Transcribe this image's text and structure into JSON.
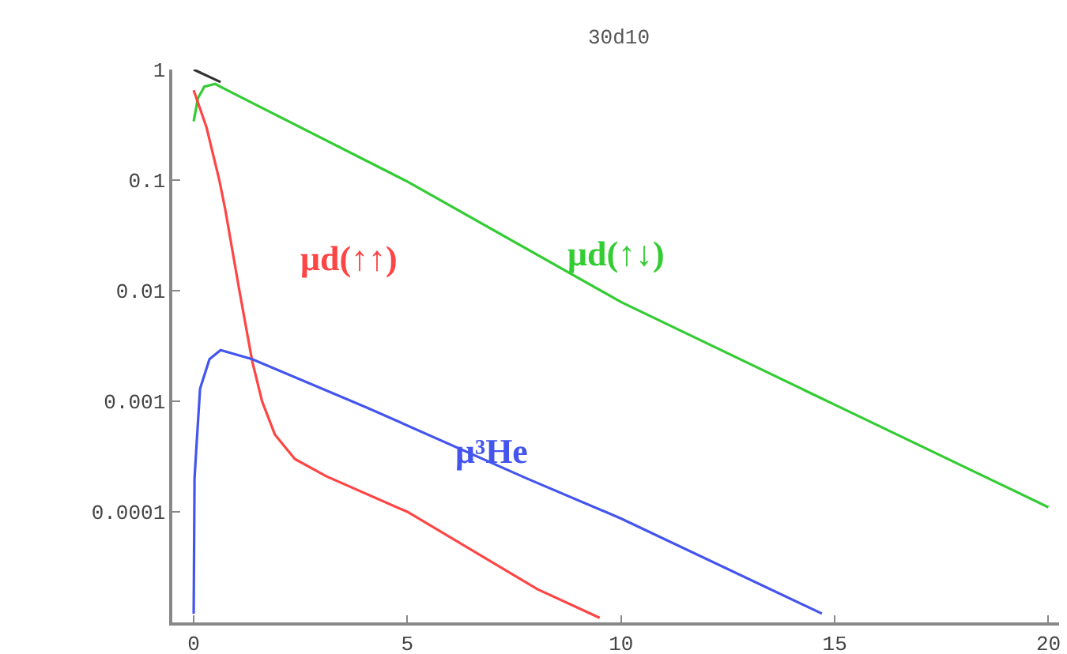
{
  "chart_data": {
    "type": "line",
    "title": "30d10",
    "log": "y",
    "legend": false,
    "marker": "none",
    "line_style": "solid",
    "xlim": [
      -0.5,
      20.25
    ],
    "ylim": [
      1e-05,
      1
    ],
    "xticks": [
      0,
      5,
      10,
      15,
      20
    ],
    "yticks": [
      1,
      0.1,
      0.01,
      0.001,
      0.0001
    ],
    "series": [
      {
        "color": "#333333",
        "x": [
          0,
          0.63
        ],
        "values": [
          1,
          0.77
        ]
      },
      {
        "name": "μd(↑↓)",
        "color": "#33cc33",
        "x": [
          0,
          0.1,
          0.25,
          0.5,
          1,
          5,
          10,
          15,
          20
        ],
        "values": [
          0.34,
          0.55,
          0.7,
          0.74,
          0.59,
          0.097,
          0.0079,
          0.00093,
          0.00011
        ]
      },
      {
        "name": "μd(↑↑)",
        "color": "#ff4444",
        "x": [
          0,
          0.3,
          0.6,
          0.74,
          1.07,
          1.37,
          1.6,
          1.9,
          2.37,
          3.1,
          5,
          8.04,
          9.5
        ],
        "values": [
          0.65,
          0.3,
          0.1,
          0.054,
          0.01,
          0.0023,
          0.001,
          0.0005,
          0.0003,
          0.00021,
          0.0001,
          2e-05,
          1.1e-05
        ]
      },
      {
        "name": "μ³He",
        "color": "#4455ee",
        "x": [
          0,
          0.02,
          0.07,
          0.15,
          0.37,
          0.63,
          1.37,
          4.07,
          7.8,
          10,
          14.7
        ],
        "values": [
          1.2e-05,
          0.0002,
          0.00042,
          0.0013,
          0.0024,
          0.0029,
          0.0024,
          0.00087,
          0.0002,
          8.7e-05,
          1.2e-05
        ]
      }
    ]
  }
}
